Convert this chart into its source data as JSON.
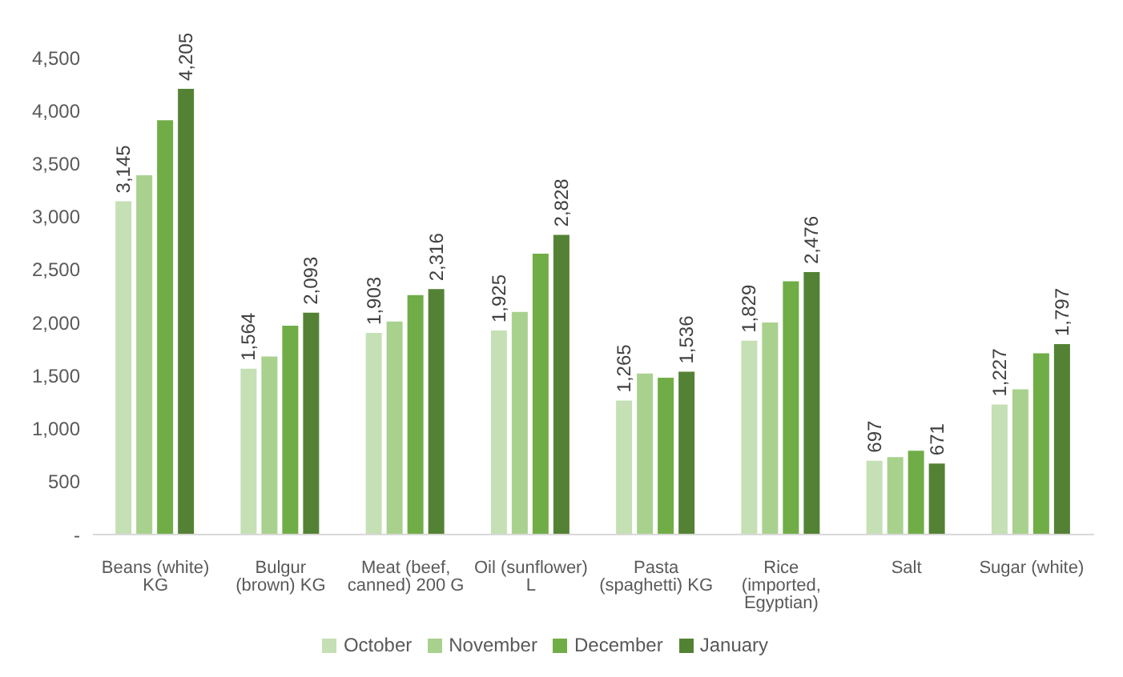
{
  "chart_data": {
    "type": "bar",
    "categories": [
      "Beans (white) KG",
      "Bulgur (brown) KG",
      "Meat (beef, canned) 200 G",
      "Oil (sunflower) L",
      "Pasta (spaghetti) KG",
      "Rice (imported, Egyptian)",
      "Salt",
      "Sugar (white)"
    ],
    "series": [
      {
        "name": "October",
        "color": "#c5e0b4",
        "values": [
          3145,
          1564,
          1903,
          1925,
          1265,
          1829,
          697,
          1227
        ],
        "value_labels": [
          "3,145",
          "1,564",
          "1,903",
          "1,925",
          "1,265",
          "1,829",
          "697",
          "1,227"
        ]
      },
      {
        "name": "November",
        "color": "#a9d18e",
        "values": [
          3390,
          1680,
          2010,
          2100,
          1520,
          2000,
          730,
          1370
        ],
        "value_labels": [
          null,
          null,
          null,
          null,
          null,
          null,
          null,
          null
        ]
      },
      {
        "name": "December",
        "color": "#70ad47",
        "values": [
          3910,
          1970,
          2260,
          2650,
          1480,
          2390,
          790,
          1710
        ],
        "value_labels": [
          null,
          null,
          null,
          null,
          null,
          null,
          null,
          null
        ]
      },
      {
        "name": "January",
        "color": "#548235",
        "values": [
          4205,
          2093,
          2316,
          2828,
          1536,
          2476,
          671,
          1797
        ],
        "value_labels": [
          "4,205",
          "2,093",
          "2,316",
          "2,828",
          "1,536",
          "2,476",
          "671",
          "1,797"
        ]
      }
    ],
    "ylim": [
      0,
      4500
    ],
    "yticks": [
      {
        "value": 0,
        "label": "-"
      },
      500,
      {
        "value": 1000,
        "label": "1,000"
      },
      {
        "value": 1500,
        "label": "1,500"
      },
      {
        "value": 2000,
        "label": "2,000"
      },
      {
        "value": 2500,
        "label": "2,500"
      },
      {
        "value": 3000,
        "label": "3,000"
      },
      {
        "value": 3500,
        "label": "3,500"
      },
      {
        "value": 4000,
        "label": "4,000"
      },
      {
        "value": 4500,
        "label": "4,500"
      }
    ],
    "grid": false,
    "legend": "bottom"
  }
}
